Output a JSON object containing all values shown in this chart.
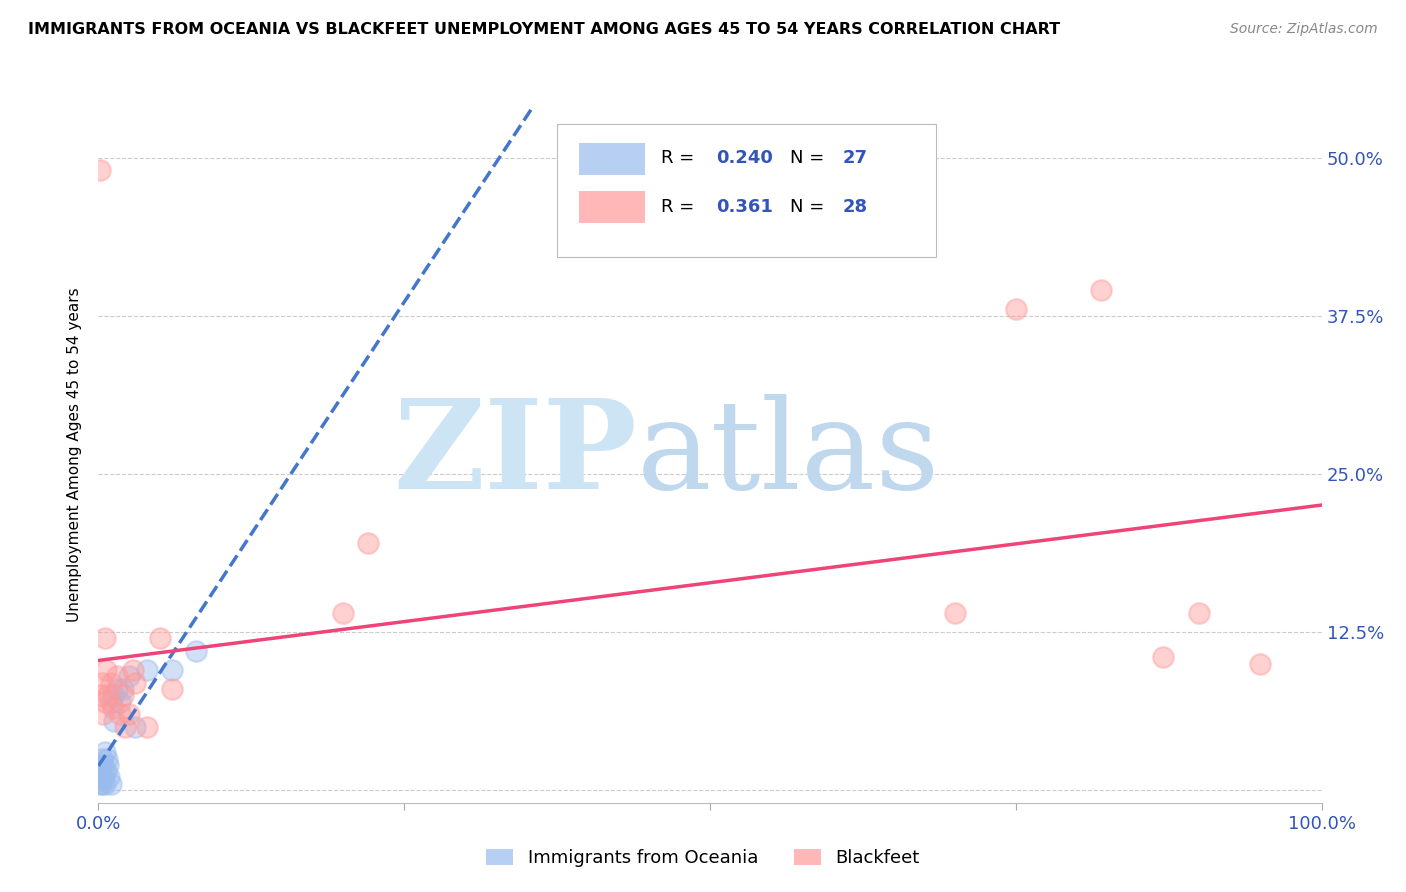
{
  "title": "IMMIGRANTS FROM OCEANIA VS BLACKFEET UNEMPLOYMENT AMONG AGES 45 TO 54 YEARS CORRELATION CHART",
  "source": "Source: ZipAtlas.com",
  "ylabel": "Unemployment Among Ages 45 to 54 years",
  "xlim": [
    0.0,
    1.0
  ],
  "ylim": [
    -0.01,
    0.54
  ],
  "xticks": [
    0.0,
    0.25,
    0.5,
    0.75,
    1.0
  ],
  "xticklabels": [
    "0.0%",
    "",
    "",
    "",
    "100.0%"
  ],
  "ytick_positions": [
    0.0,
    0.125,
    0.25,
    0.375,
    0.5
  ],
  "yticklabels_right": [
    "",
    "12.5%",
    "25.0%",
    "37.5%",
    "50.0%"
  ],
  "legend_label1": "Immigrants from Oceania",
  "legend_label2": "Blackfeet",
  "R1": "0.240",
  "N1": "27",
  "R2": "0.361",
  "N2": "28",
  "blue_color": "#99BBEE",
  "pink_color": "#FF9999",
  "blue_line_color": "#4477CC",
  "pink_line_color": "#EE4477",
  "blue_scatter_x": [
    0.001,
    0.001,
    0.001,
    0.002,
    0.002,
    0.003,
    0.003,
    0.004,
    0.004,
    0.005,
    0.005,
    0.006,
    0.007,
    0.008,
    0.009,
    0.01,
    0.01,
    0.012,
    0.013,
    0.015,
    0.018,
    0.02,
    0.025,
    0.03,
    0.04,
    0.06,
    0.08
  ],
  "blue_scatter_y": [
    0.005,
    0.01,
    0.015,
    0.008,
    0.018,
    0.005,
    0.025,
    0.01,
    0.02,
    0.005,
    0.03,
    0.015,
    0.025,
    0.02,
    0.01,
    0.005,
    0.07,
    0.075,
    0.055,
    0.08,
    0.07,
    0.08,
    0.09,
    0.05,
    0.095,
    0.095,
    0.11
  ],
  "pink_scatter_x": [
    0.001,
    0.002,
    0.003,
    0.004,
    0.005,
    0.006,
    0.008,
    0.01,
    0.012,
    0.015,
    0.018,
    0.02,
    0.022,
    0.025,
    0.028,
    0.03,
    0.04,
    0.05,
    0.06,
    0.2,
    0.22,
    0.7,
    0.75,
    0.82,
    0.87,
    0.9,
    0.95,
    0.005
  ],
  "pink_scatter_y": [
    0.49,
    0.075,
    0.085,
    0.06,
    0.07,
    0.095,
    0.075,
    0.085,
    0.065,
    0.09,
    0.06,
    0.075,
    0.05,
    0.06,
    0.095,
    0.085,
    0.05,
    0.12,
    0.08,
    0.14,
    0.195,
    0.14,
    0.38,
    0.395,
    0.105,
    0.14,
    0.1,
    0.12
  ]
}
